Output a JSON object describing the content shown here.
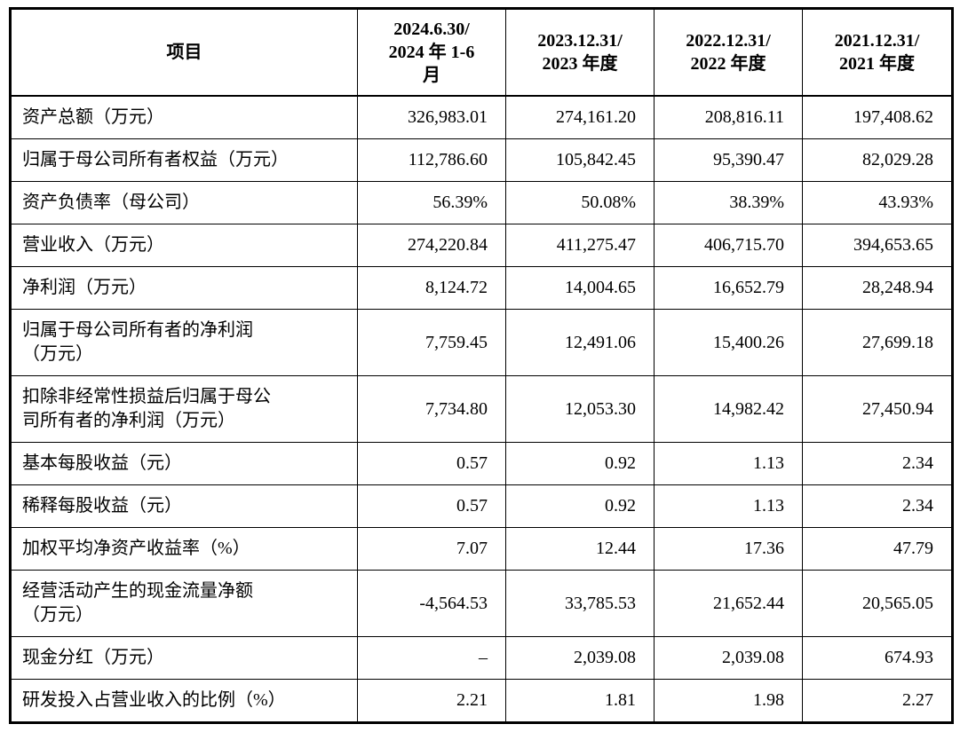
{
  "table": {
    "item_header": "项目",
    "period_headers": [
      "2024.6.30/\n2024 年 1-6\n月",
      "2023.12.31/\n2023 年度",
      "2022.12.31/\n2022 年度",
      "2021.12.31/\n2021 年度"
    ],
    "rows": [
      {
        "label": "资产总额（万元）",
        "values": [
          "326,983.01",
          "274,161.20",
          "208,816.11",
          "197,408.62"
        ]
      },
      {
        "label": "归属于母公司所有者权益（万元）",
        "values": [
          "112,786.60",
          "105,842.45",
          "95,390.47",
          "82,029.28"
        ]
      },
      {
        "label": "资产负债率（母公司）",
        "values": [
          "56.39%",
          "50.08%",
          "38.39%",
          "43.93%"
        ]
      },
      {
        "label": "营业收入（万元）",
        "values": [
          "274,220.84",
          "411,275.47",
          "406,715.70",
          "394,653.65"
        ]
      },
      {
        "label": "净利润（万元）",
        "values": [
          "8,124.72",
          "14,004.65",
          "16,652.79",
          "28,248.94"
        ]
      },
      {
        "label": "归属于母公司所有者的净利润\n（万元）",
        "values": [
          "7,759.45",
          "12,491.06",
          "15,400.26",
          "27,699.18"
        ]
      },
      {
        "label": "扣除非经常性损益后归属于母公\n司所有者的净利润（万元）",
        "values": [
          "7,734.80",
          "12,053.30",
          "14,982.42",
          "27,450.94"
        ]
      },
      {
        "label": "基本每股收益（元）",
        "values": [
          "0.57",
          "0.92",
          "1.13",
          "2.34"
        ]
      },
      {
        "label": "稀释每股收益（元）",
        "values": [
          "0.57",
          "0.92",
          "1.13",
          "2.34"
        ]
      },
      {
        "label": "加权平均净资产收益率（%）",
        "values": [
          "7.07",
          "12.44",
          "17.36",
          "47.79"
        ]
      },
      {
        "label": "经营活动产生的现金流量净额\n（万元）",
        "values": [
          "-4,564.53",
          "33,785.53",
          "21,652.44",
          "20,565.05"
        ]
      },
      {
        "label": "现金分红（万元）",
        "values": [
          "–",
          "2,039.08",
          "2,039.08",
          "674.93"
        ]
      },
      {
        "label": "研发投入占营业收入的比例（%）",
        "values": [
          "2.21",
          "1.81",
          "1.98",
          "2.27"
        ]
      }
    ],
    "colors": {
      "border": "#000000",
      "text": "#000000",
      "background": "#ffffff"
    }
  }
}
